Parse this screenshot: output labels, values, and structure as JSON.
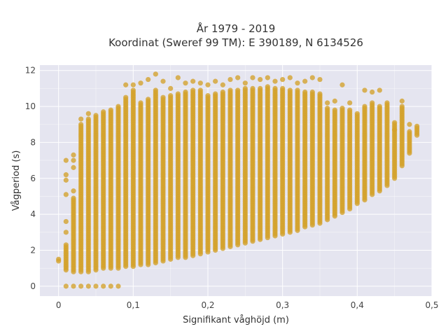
{
  "chart_data": {
    "type": "scatter",
    "title_lines": [
      "År 1979 - 2019",
      "Koordinat (Sweref 99 TM): E 390189, N 6134526"
    ],
    "xlabel": "Signifikant våghöjd (m)",
    "ylabel": "Vågperiod (s)",
    "xlim": [
      -0.025,
      0.5
    ],
    "ylim": [
      -0.55,
      12.3
    ],
    "x_ticks": [
      0,
      0.1,
      0.2,
      0.3,
      0.4,
      0.5
    ],
    "x_tick_labels": [
      "0",
      "0,1",
      "0,2",
      "0,3",
      "0,4",
      "0,5"
    ],
    "y_ticks": [
      0,
      2,
      4,
      6,
      8,
      10,
      12
    ],
    "y_tick_labels": [
      "0",
      "2",
      "4",
      "6",
      "8",
      "10",
      "12"
    ],
    "grid": true,
    "colors": {
      "marker": "#d4a22a",
      "plot_bg": "#e5e5f0",
      "grid": "#ffffff"
    },
    "columns": [
      {
        "x": 0.0,
        "ymin": 1.4,
        "ymax": 1.5
      },
      {
        "x": 0.01,
        "ymin": 0.9,
        "ymax": 2.3,
        "extra": [
          0,
          3.0,
          3.6,
          5.1,
          5.9,
          6.2,
          7.0
        ]
      },
      {
        "x": 0.02,
        "ymin": 0.8,
        "ymax": 4.9,
        "extra": [
          0,
          5.3,
          6.6,
          7.0,
          7.3
        ]
      },
      {
        "x": 0.03,
        "ymin": 0.8,
        "ymax": 9.0,
        "extra": [
          0,
          9.3
        ]
      },
      {
        "x": 0.04,
        "ymin": 0.8,
        "ymax": 9.3,
        "extra": [
          0,
          9.6
        ]
      },
      {
        "x": 0.05,
        "ymin": 0.9,
        "ymax": 9.5,
        "extra": [
          0
        ]
      },
      {
        "x": 0.06,
        "ymin": 1.0,
        "ymax": 9.7,
        "extra": [
          0
        ]
      },
      {
        "x": 0.07,
        "ymin": 1.0,
        "ymax": 9.8,
        "extra": [
          0
        ]
      },
      {
        "x": 0.08,
        "ymin": 1.0,
        "ymax": 10.0,
        "extra": [
          0
        ]
      },
      {
        "x": 0.09,
        "ymin": 1.1,
        "ymax": 10.5,
        "extra": [
          11.2
        ]
      },
      {
        "x": 0.1,
        "ymin": 1.1,
        "ymax": 10.9,
        "extra": [
          11.2
        ]
      },
      {
        "x": 0.11,
        "ymin": 1.2,
        "ymax": 10.2,
        "extra": [
          11.3
        ]
      },
      {
        "x": 0.12,
        "ymin": 1.2,
        "ymax": 10.4,
        "extra": [
          11.5
        ]
      },
      {
        "x": 0.13,
        "ymin": 1.3,
        "ymax": 10.9,
        "extra": [
          11.8
        ]
      },
      {
        "x": 0.14,
        "ymin": 1.4,
        "ymax": 10.5,
        "extra": [
          11.4
        ]
      },
      {
        "x": 0.15,
        "ymin": 1.5,
        "ymax": 10.6,
        "extra": [
          11.0
        ]
      },
      {
        "x": 0.16,
        "ymin": 1.6,
        "ymax": 10.7,
        "extra": [
          11.6
        ]
      },
      {
        "x": 0.17,
        "ymin": 1.6,
        "ymax": 10.8,
        "extra": [
          11.3
        ]
      },
      {
        "x": 0.18,
        "ymin": 1.7,
        "ymax": 10.9,
        "extra": [
          11.4
        ]
      },
      {
        "x": 0.19,
        "ymin": 1.8,
        "ymax": 10.9,
        "extra": [
          11.3
        ]
      },
      {
        "x": 0.2,
        "ymin": 1.9,
        "ymax": 10.6,
        "extra": [
          11.2
        ]
      },
      {
        "x": 0.21,
        "ymin": 2.0,
        "ymax": 10.7,
        "extra": [
          11.4
        ]
      },
      {
        "x": 0.22,
        "ymin": 2.1,
        "ymax": 10.8,
        "extra": [
          11.2
        ]
      },
      {
        "x": 0.23,
        "ymin": 2.2,
        "ymax": 10.9,
        "extra": [
          11.5
        ]
      },
      {
        "x": 0.24,
        "ymin": 2.3,
        "ymax": 10.9,
        "extra": [
          11.6
        ]
      },
      {
        "x": 0.25,
        "ymin": 2.4,
        "ymax": 11.0,
        "extra": [
          11.3
        ]
      },
      {
        "x": 0.26,
        "ymin": 2.5,
        "ymax": 11.0,
        "extra": [
          11.6
        ]
      },
      {
        "x": 0.27,
        "ymin": 2.6,
        "ymax": 11.0,
        "extra": [
          11.5
        ]
      },
      {
        "x": 0.28,
        "ymin": 2.7,
        "ymax": 11.1,
        "extra": [
          11.6
        ]
      },
      {
        "x": 0.29,
        "ymin": 2.8,
        "ymax": 11.0,
        "extra": [
          11.4
        ]
      },
      {
        "x": 0.3,
        "ymin": 2.9,
        "ymax": 11.0,
        "extra": [
          11.5
        ]
      },
      {
        "x": 0.31,
        "ymin": 3.0,
        "ymax": 10.9,
        "extra": [
          11.6
        ]
      },
      {
        "x": 0.32,
        "ymin": 3.1,
        "ymax": 10.9,
        "extra": [
          11.3
        ]
      },
      {
        "x": 0.33,
        "ymin": 3.3,
        "ymax": 10.8,
        "extra": [
          11.4
        ]
      },
      {
        "x": 0.34,
        "ymin": 3.4,
        "ymax": 10.8,
        "extra": [
          11.6
        ]
      },
      {
        "x": 0.35,
        "ymin": 3.5,
        "ymax": 10.7,
        "extra": [
          11.5
        ]
      },
      {
        "x": 0.36,
        "ymin": 3.7,
        "ymax": 9.9,
        "extra": [
          10.2
        ]
      },
      {
        "x": 0.37,
        "ymin": 3.9,
        "ymax": 9.8,
        "extra": [
          10.3
        ]
      },
      {
        "x": 0.38,
        "ymin": 4.1,
        "ymax": 9.9,
        "extra": [
          11.2
        ]
      },
      {
        "x": 0.39,
        "ymin": 4.3,
        "ymax": 9.8,
        "extra": [
          10.2
        ]
      },
      {
        "x": 0.4,
        "ymin": 4.6,
        "ymax": 9.6
      },
      {
        "x": 0.41,
        "ymin": 4.8,
        "ymax": 10.0,
        "extra": [
          10.9
        ]
      },
      {
        "x": 0.42,
        "ymin": 5.1,
        "ymax": 10.2,
        "extra": [
          10.8
        ]
      },
      {
        "x": 0.43,
        "ymin": 5.3,
        "ymax": 10.0,
        "extra": [
          10.9
        ]
      },
      {
        "x": 0.44,
        "ymin": 5.6,
        "ymax": 10.2
      },
      {
        "x": 0.45,
        "ymin": 6.0,
        "ymax": 9.1,
        "extra": [
          8.7
        ]
      },
      {
        "x": 0.46,
        "ymin": 6.7,
        "ymax": 10.0,
        "extra": [
          10.3
        ]
      },
      {
        "x": 0.47,
        "ymin": 7.4,
        "ymax": 8.6,
        "extra": [
          9.0
        ]
      },
      {
        "x": 0.48,
        "ymin": 8.4,
        "ymax": 8.9
      }
    ]
  }
}
